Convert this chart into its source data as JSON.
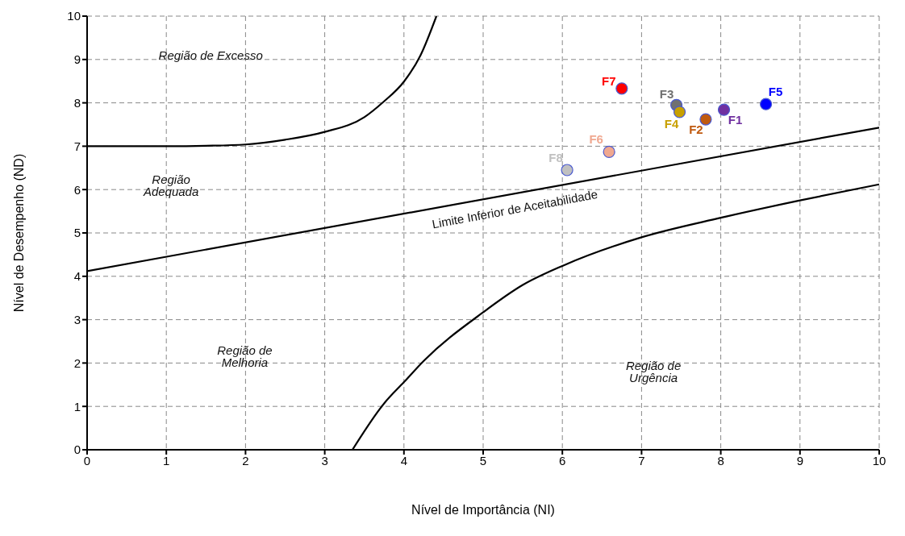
{
  "chart_data": {
    "type": "scatter",
    "xlabel": "Nível de Importância  (NI)",
    "ylabel": "Nível de Desempenho (ND)",
    "xlim": [
      0,
      10
    ],
    "ylim": [
      0,
      10
    ],
    "xticks": [
      0,
      1,
      2,
      3,
      4,
      5,
      6,
      7,
      8,
      9,
      10
    ],
    "yticks": [
      0,
      1,
      2,
      3,
      4,
      5,
      6,
      7,
      8,
      9,
      10
    ],
    "grid": true,
    "legend": false,
    "marker": "circle",
    "series": [
      {
        "name": "F1",
        "color": "#7030a0",
        "x": [
          8.04
        ],
        "values": [
          7.84
        ]
      },
      {
        "name": "F2",
        "color": "#c05a10",
        "x": [
          7.81
        ],
        "values": [
          7.62
        ]
      },
      {
        "name": "F3",
        "color": "#707070",
        "x": [
          7.44
        ],
        "values": [
          7.95
        ]
      },
      {
        "name": "F4",
        "color": "#c8a000",
        "x": [
          7.48
        ],
        "values": [
          7.79
        ]
      },
      {
        "name": "F5",
        "color": "#0000ff",
        "x": [
          8.57
        ],
        "values": [
          7.97
        ]
      },
      {
        "name": "F6",
        "color": "#f0a890",
        "x": [
          6.59
        ],
        "values": [
          6.87
        ]
      },
      {
        "name": "F7",
        "color": "#ff0000",
        "x": [
          6.75
        ],
        "values": [
          8.33
        ]
      },
      {
        "name": "F8",
        "color": "#c0c0c0",
        "x": [
          6.06
        ],
        "values": [
          6.45
        ]
      },
      {
        "type": "line",
        "color": "#000000",
        "marker": "none",
        "line_style": "solid",
        "x": [
          0,
          1,
          1.5,
          2,
          2.5,
          3,
          3.5,
          3.74,
          4,
          4.21,
          4.41
        ],
        "values": [
          7,
          7,
          7.01,
          7.04,
          7.15,
          7.33,
          7.67,
          8.02,
          8.49,
          9.1,
          10
        ]
      },
      {
        "type": "line",
        "color": "#000000",
        "marker": "none",
        "line_style": "solid",
        "x": [
          0,
          10
        ],
        "values": [
          4.12,
          7.43
        ]
      },
      {
        "type": "line",
        "color": "#000000",
        "marker": "none",
        "line_style": "solid",
        "x": [
          3.35,
          3.75,
          4,
          4.25,
          5,
          5.5,
          6,
          7,
          8,
          9,
          10
        ],
        "values": [
          0,
          1.07,
          1.56,
          2.05,
          3.17,
          3.8,
          4.24,
          4.9,
          5.35,
          5.75,
          6.12
        ]
      }
    ],
    "annotations": [
      "Região de Excesso",
      "Região Adequada",
      "Região de Melhoria",
      "Região de Urgência",
      "Limite Inferior de Aceitabilidade"
    ]
  }
}
